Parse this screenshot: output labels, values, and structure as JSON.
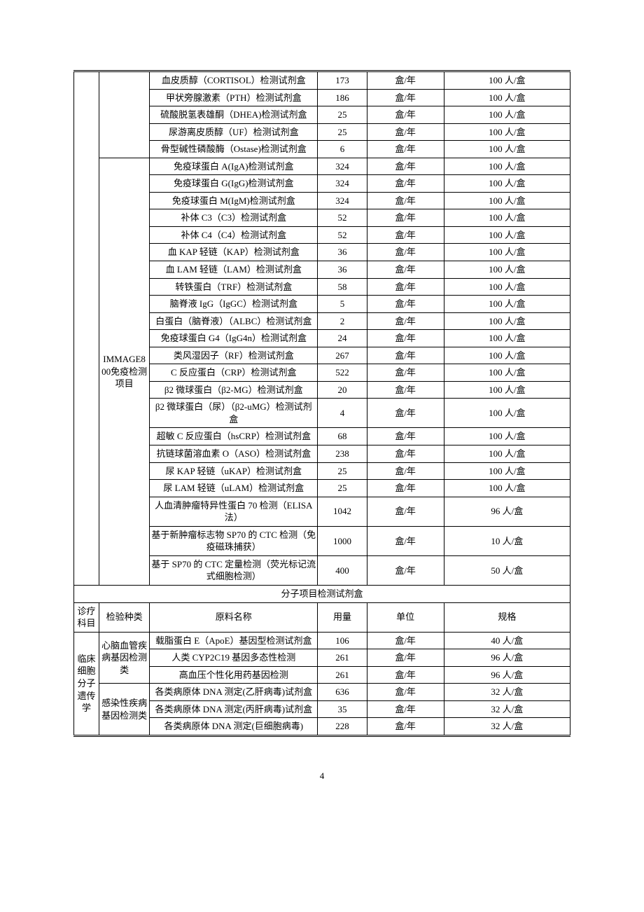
{
  "table1": {
    "dept_blank": "",
    "cat1_blank": "",
    "top_rows": [
      {
        "name": "血皮质醇（CORTISOL）检测试剂盒",
        "qty": "173",
        "unit": "盒/年",
        "spec": "100 人/盒"
      },
      {
        "name": "甲状旁腺激素（PTH）检测试剂盒",
        "qty": "186",
        "unit": "盒/年",
        "spec": "100 人/盒"
      },
      {
        "name": "硫酸脱氢表雄酮（DHEA)检测试剂盒",
        "qty": "25",
        "unit": "盒/年",
        "spec": "100 人/盒"
      },
      {
        "name": "尿游离皮质醇（UF）检测试剂盒",
        "qty": "25",
        "unit": "盒/年",
        "spec": "100 人/盒"
      },
      {
        "name": "骨型碱性磷酸酶（Ostase)检测试剂盒",
        "qty": "6",
        "unit": "盒/年",
        "spec": "100 人/盒"
      }
    ],
    "cat2_label": "IMMAGE800免疫检测项目",
    "cat2_rows": [
      {
        "name": "免疫球蛋白 A(IgA)检测试剂盒",
        "qty": "324",
        "unit": "盒/年",
        "spec": "100 人/盒"
      },
      {
        "name": "免疫球蛋白 G(IgG)检测试剂盒",
        "qty": "324",
        "unit": "盒/年",
        "spec": "100 人/盒"
      },
      {
        "name": "免疫球蛋白 M(IgM)检测试剂盒",
        "qty": "324",
        "unit": "盒/年",
        "spec": "100 人/盒"
      },
      {
        "name": "补体 C3（C3）检测试剂盒",
        "qty": "52",
        "unit": "盒/年",
        "spec": "100 人/盒"
      },
      {
        "name": "补体 C4（C4）检测试剂盒",
        "qty": "52",
        "unit": "盒/年",
        "spec": "100 人/盒"
      },
      {
        "name": "血 KAP 轻链（KAP）检测试剂盒",
        "qty": "36",
        "unit": "盒/年",
        "spec": "100 人/盒"
      },
      {
        "name": "血 LAM 轻链（LAM）检测试剂盒",
        "qty": "36",
        "unit": "盒/年",
        "spec": "100 人/盒"
      },
      {
        "name": "转铁蛋白（TRF）检测试剂盒",
        "qty": "58",
        "unit": "盒/年",
        "spec": "100 人/盒"
      },
      {
        "name": "脑脊液 IgG（IgGC）检测试剂盒",
        "qty": "5",
        "unit": "盒/年",
        "spec": "100 人/盒"
      },
      {
        "name": "白蛋白（脑脊液）（ALBC）检测试剂盒",
        "qty": "2",
        "unit": "盒/年",
        "spec": "100 人/盒"
      },
      {
        "name": "免疫球蛋白 G4（IgG4n）检测试剂盒",
        "qty": "24",
        "unit": "盒/年",
        "spec": "100 人/盒"
      },
      {
        "name": "类风湿因子（RF）检测试剂盒",
        "qty": "267",
        "unit": "盒/年",
        "spec": "100 人/盒"
      },
      {
        "name": "C 反应蛋白（CRP）检测试剂盒",
        "qty": "522",
        "unit": "盒/年",
        "spec": "100 人/盒"
      },
      {
        "name": "β2 微球蛋白（β2-MG）检测试剂盒",
        "qty": "20",
        "unit": "盒/年",
        "spec": "100 人/盒"
      },
      {
        "name": "β2 微球蛋白（尿）（β2-uMG）检测试剂盒",
        "qty": "4",
        "unit": "盒/年",
        "spec": "100 人/盒"
      },
      {
        "name": "超敏 C 反应蛋白（hsCRP）检测试剂盒",
        "qty": "68",
        "unit": "盒/年",
        "spec": "100 人/盒"
      },
      {
        "name": "抗链球菌溶血素 O（ASO）检测试剂盒",
        "qty": "238",
        "unit": "盒/年",
        "spec": "100 人/盒"
      },
      {
        "name": "尿 KAP 轻链（uKAP）检测试剂盒",
        "qty": "25",
        "unit": "盒/年",
        "spec": "100 人/盒"
      },
      {
        "name": "尿 LAM 轻链（uLAM）检测试剂盒",
        "qty": "25",
        "unit": "盒/年",
        "spec": "100 人/盒"
      },
      {
        "name": "人血清肿瘤特异性蛋白 70 检测（ELISA 法）",
        "qty": "1042",
        "unit": "盒/年",
        "spec": "96 人/盒"
      },
      {
        "name": "基于新肿瘤标志物 SP70 的 CTC 检测（免疫磁珠捕获）",
        "qty": "1000",
        "unit": "盒/年",
        "spec": "10 人/盒"
      },
      {
        "name": "基于 SP70 的 CTC 定量检测（荧光标记流式细胞检测）",
        "qty": "400",
        "unit": "盒/年",
        "spec": "50 人/盒"
      }
    ]
  },
  "section2": {
    "title": "分子项目检测试剂盒",
    "headers": {
      "c1": "诊疗科目",
      "c2": "检验种类",
      "c3": "原料名称",
      "c4": "用量",
      "c5": "单位",
      "c6": "规格"
    },
    "dept": "临床细胞分子遗传学",
    "catA": "心脑血管疾病基因检测类",
    "catA_rows": [
      {
        "name": "载脂蛋白 E（ApoE）基因型检测试剂盒",
        "qty": "106",
        "unit": "盒/年",
        "spec": "40 人/盒"
      },
      {
        "name": "人类 CYP2C19 基因多态性检测",
        "qty": "261",
        "unit": "盒/年",
        "spec": "96 人/盒"
      },
      {
        "name": "高血压个性化用药基因检测",
        "qty": "261",
        "unit": "盒/年",
        "spec": "96 人/盒"
      }
    ],
    "catB": "感染性疾病基因检测类",
    "catB_rows": [
      {
        "name": "各类病原体 DNA 测定(乙肝病毒)试剂盒",
        "qty": "636",
        "unit": "盒/年",
        "spec": "32 人/盒"
      },
      {
        "name": "各类病原体 DNA 测定(丙肝病毒)试剂盒",
        "qty": "35",
        "unit": "盒/年",
        "spec": "32 人/盒"
      },
      {
        "name": "各类病原体 DNA 测定(巨细胞病毒)",
        "qty": "228",
        "unit": "盒/年",
        "spec": "32 人/盒"
      }
    ]
  },
  "page_number": "4"
}
